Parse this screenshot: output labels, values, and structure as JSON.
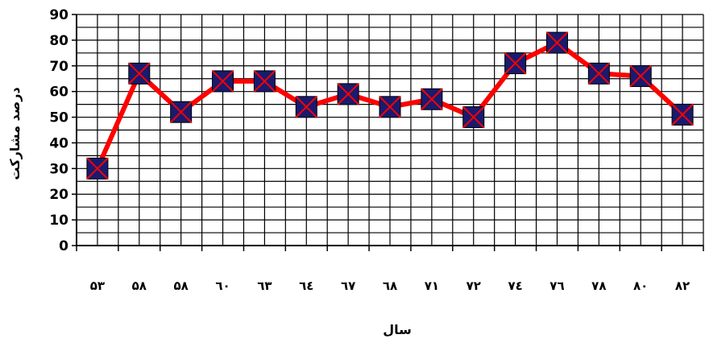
{
  "chart_data": {
    "type": "line",
    "title": "",
    "xlabel": "سال",
    "ylabel": "درصد مشارکت",
    "ylim": [
      0,
      90
    ],
    "y_ticks": [
      0,
      10,
      20,
      30,
      40,
      50,
      60,
      70,
      80,
      90
    ],
    "grid": true,
    "legend": "none",
    "line_color": "#ff0000",
    "marker_fill": "#1a1a6e",
    "marker_cross_color": "#ff0000",
    "categories": [
      "۵۳",
      "۵۸",
      "۵۸",
      "٦۰",
      "٦۳",
      "٦٤",
      "٦۷",
      "٦۸",
      "۷۱",
      "۷۲",
      "۷٤",
      "۷٦",
      "۷۸",
      "۸۰",
      "۸۲"
    ],
    "series": [
      {
        "values": [
          30,
          67,
          52,
          64,
          64,
          54,
          59,
          54,
          57,
          50,
          71,
          79,
          67,
          66,
          51
        ]
      }
    ]
  }
}
